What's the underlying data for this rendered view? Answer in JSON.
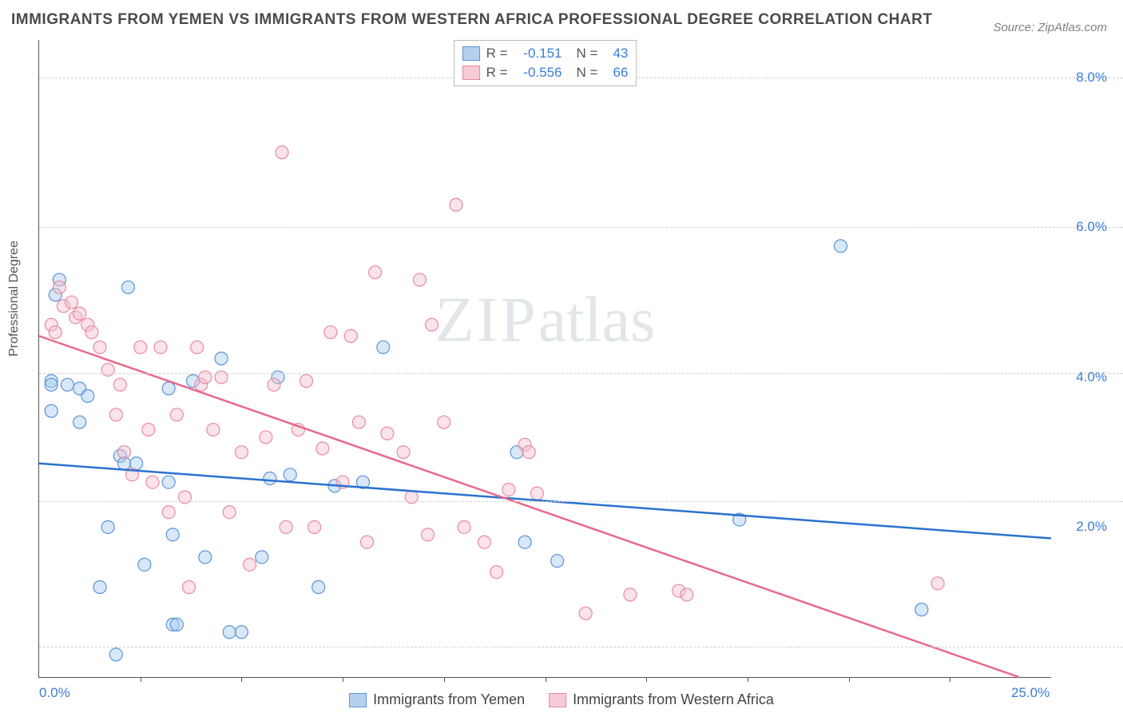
{
  "title": "IMMIGRANTS FROM YEMEN VS IMMIGRANTS FROM WESTERN AFRICA PROFESSIONAL DEGREE CORRELATION CHART",
  "source": "Source: ZipAtlas.com",
  "ylabel": "Professional Degree",
  "watermark_zip": "ZIP",
  "watermark_atlas": "atlas",
  "chart": {
    "type": "scatter",
    "xlim": [
      0,
      25
    ],
    "ylim": [
      0,
      8.5
    ],
    "x_ticks": [
      0,
      25
    ],
    "x_tick_labels": [
      "0.0%",
      "25.0%"
    ],
    "x_minor_ticks": [
      2.5,
      5,
      7.5,
      10,
      12.5,
      15,
      17.5,
      20,
      22.5
    ],
    "y_gridlines": [
      0.4,
      2.35,
      4.05,
      6.0,
      8.0
    ],
    "y_tick_labels": [
      "2.0%",
      "4.0%",
      "6.0%",
      "8.0%"
    ],
    "y_tick_values": [
      2.0,
      4.0,
      6.0,
      8.0
    ],
    "grid_color": "#d0d0d0",
    "background_color": "#ffffff",
    "marker_radius": 8,
    "marker_fill_opacity": 0.45,
    "series": [
      {
        "name": "Immigrants from Yemen",
        "color": "#a8cdf0",
        "stroke": "#5a94d6",
        "trend_color": "#2b72cf",
        "R": "-0.151",
        "N": "43",
        "trend": {
          "x1": 0,
          "y1": 2.85,
          "x2": 25,
          "y2": 1.85
        },
        "points": [
          [
            0.5,
            5.3
          ],
          [
            0.4,
            5.1
          ],
          [
            0.3,
            3.95
          ],
          [
            0.3,
            3.9
          ],
          [
            0.3,
            3.55
          ],
          [
            0.7,
            3.9
          ],
          [
            1.0,
            3.85
          ],
          [
            1.0,
            3.4
          ],
          [
            1.2,
            3.75
          ],
          [
            2.2,
            5.2
          ],
          [
            2.0,
            2.95
          ],
          [
            1.7,
            2.0
          ],
          [
            1.5,
            1.2
          ],
          [
            1.9,
            0.3
          ],
          [
            2.1,
            2.85
          ],
          [
            2.4,
            2.85
          ],
          [
            2.6,
            1.5
          ],
          [
            3.2,
            3.85
          ],
          [
            3.2,
            2.6
          ],
          [
            3.3,
            1.9
          ],
          [
            3.3,
            0.7
          ],
          [
            3.4,
            0.7
          ],
          [
            3.8,
            3.95
          ],
          [
            4.1,
            1.6
          ],
          [
            4.5,
            4.25
          ],
          [
            4.7,
            0.6
          ],
          [
            5.0,
            0.6
          ],
          [
            5.5,
            1.6
          ],
          [
            5.7,
            2.65
          ],
          [
            5.9,
            4.0
          ],
          [
            6.2,
            2.7
          ],
          [
            6.9,
            1.2
          ],
          [
            7.3,
            2.55
          ],
          [
            8.5,
            4.4
          ],
          [
            8.0,
            2.6
          ],
          [
            11.8,
            3.0
          ],
          [
            12.0,
            1.8
          ],
          [
            12.8,
            1.55
          ],
          [
            17.3,
            2.1
          ],
          [
            19.8,
            5.75
          ],
          [
            21.8,
            0.9
          ]
        ]
      },
      {
        "name": "Immigrants from Western Africa",
        "color": "#f5c2cf",
        "stroke": "#e88aa3",
        "trend_color": "#e76a8a",
        "R": "-0.556",
        "N": "66",
        "trend": {
          "x1": 0,
          "y1": 4.55,
          "x2": 24.2,
          "y2": 0.0
        },
        "points": [
          [
            0.5,
            5.2
          ],
          [
            0.6,
            4.95
          ],
          [
            0.8,
            5.0
          ],
          [
            0.9,
            4.8
          ],
          [
            1.0,
            4.85
          ],
          [
            1.2,
            4.7
          ],
          [
            0.3,
            4.7
          ],
          [
            0.4,
            4.6
          ],
          [
            1.3,
            4.6
          ],
          [
            1.5,
            4.4
          ],
          [
            1.7,
            4.1
          ],
          [
            1.9,
            3.5
          ],
          [
            2.0,
            3.9
          ],
          [
            2.1,
            3.0
          ],
          [
            2.3,
            2.7
          ],
          [
            2.5,
            4.4
          ],
          [
            2.7,
            3.3
          ],
          [
            2.8,
            2.6
          ],
          [
            3.0,
            4.4
          ],
          [
            3.2,
            2.2
          ],
          [
            3.4,
            3.5
          ],
          [
            3.6,
            2.4
          ],
          [
            3.7,
            1.2
          ],
          [
            3.9,
            4.4
          ],
          [
            4.0,
            3.9
          ],
          [
            4.1,
            4.0
          ],
          [
            4.3,
            3.3
          ],
          [
            4.5,
            4.0
          ],
          [
            4.7,
            2.2
          ],
          [
            5.0,
            3.0
          ],
          [
            5.2,
            1.5
          ],
          [
            5.6,
            3.2
          ],
          [
            5.8,
            3.9
          ],
          [
            6.0,
            7.0
          ],
          [
            6.1,
            2.0
          ],
          [
            6.4,
            3.3
          ],
          [
            6.6,
            3.95
          ],
          [
            6.8,
            2.0
          ],
          [
            7.0,
            3.05
          ],
          [
            7.2,
            4.6
          ],
          [
            7.5,
            2.6
          ],
          [
            7.7,
            4.55
          ],
          [
            7.9,
            3.4
          ],
          [
            8.1,
            1.8
          ],
          [
            8.3,
            5.4
          ],
          [
            8.6,
            3.25
          ],
          [
            9.0,
            3.0
          ],
          [
            9.2,
            2.4
          ],
          [
            9.4,
            5.3
          ],
          [
            9.6,
            1.9
          ],
          [
            9.7,
            4.7
          ],
          [
            10.0,
            3.4
          ],
          [
            10.3,
            6.3
          ],
          [
            10.5,
            2.0
          ],
          [
            11.0,
            1.8
          ],
          [
            11.3,
            1.4
          ],
          [
            11.6,
            2.5
          ],
          [
            12.0,
            3.1
          ],
          [
            12.1,
            3.0
          ],
          [
            12.3,
            2.45
          ],
          [
            13.5,
            0.85
          ],
          [
            14.6,
            1.1
          ],
          [
            15.8,
            1.15
          ],
          [
            16.0,
            1.1
          ],
          [
            22.2,
            1.25
          ]
        ]
      }
    ]
  },
  "legend_top": {
    "rows": [
      {
        "swatch": "blue",
        "R_label": "R =",
        "R": "-0.151",
        "N_label": "N =",
        "N": "43"
      },
      {
        "swatch": "pink",
        "R_label": "R =",
        "R": "-0.556",
        "N_label": "N =",
        "N": "66"
      }
    ]
  },
  "legend_bottom": {
    "items": [
      {
        "swatch": "blue",
        "label": "Immigrants from Yemen"
      },
      {
        "swatch": "pink",
        "label": "Immigrants from Western Africa"
      }
    ]
  }
}
